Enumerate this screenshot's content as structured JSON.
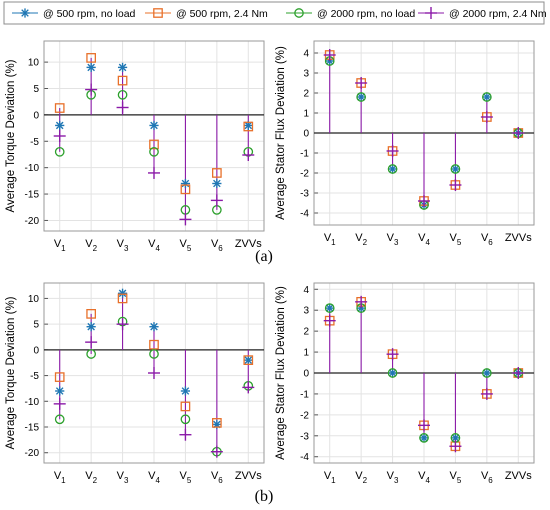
{
  "legend": [
    {
      "label": "@ 500 rpm, no load",
      "marker": "asterisk",
      "color": "#1f77b4"
    },
    {
      "label": "@ 500 rpm, 2.4 Nm",
      "marker": "square",
      "color": "#e8702a"
    },
    {
      "label": "@ 2000 rpm, no load",
      "marker": "circle",
      "color": "#2ca02c"
    },
    {
      "label": "@ 2000 rpm, 2.4 Nm",
      "marker": "plus",
      "color": "#8b1aa8"
    }
  ],
  "stem_color": "#8b1aa8",
  "panel_labels": [
    "(a)",
    "(b)"
  ],
  "chart_data": [
    {
      "id": "a-torque",
      "type": "scatter",
      "categories": [
        "V1",
        "V2",
        "V3",
        "V4",
        "V5",
        "V6",
        "ZVVs"
      ],
      "ylabel": "Average Torque Deviation (%)",
      "ylim": [
        -22,
        14
      ],
      "yticks": [
        10,
        5,
        0,
        -5,
        -10,
        -15,
        -20
      ],
      "grid": true,
      "series": [
        {
          "name": "@ 500 rpm, no load",
          "values": [
            -2,
            9,
            9,
            -2,
            -13,
            -13,
            -2
          ]
        },
        {
          "name": "@ 500 rpm, 2.4 Nm",
          "values": [
            1.3,
            10.8,
            6.5,
            -5.6,
            -14.1,
            -11,
            -2.2
          ]
        },
        {
          "name": "@ 2000 rpm, no load",
          "values": [
            -7,
            3.8,
            3.8,
            -7,
            -18,
            -18,
            -7
          ]
        },
        {
          "name": "@ 2000 rpm, 2.4 Nm",
          "values": [
            -4,
            4.8,
            1.4,
            -11,
            -19.8,
            -16.2,
            -7.6
          ]
        }
      ]
    },
    {
      "id": "a-flux",
      "type": "scatter",
      "categories": [
        "V1",
        "V2",
        "V3",
        "V4",
        "V5",
        "V6",
        "ZVVs"
      ],
      "ylabel": "Average Stator Flux Deviation (%)",
      "ylim": [
        -4.6,
        4.6
      ],
      "yticks": [
        4,
        3,
        2,
        1,
        0,
        -1,
        -2,
        -3,
        -4
      ],
      "grid": true,
      "series": [
        {
          "name": "@ 500 rpm, no load",
          "values": [
            3.6,
            1.8,
            -1.8,
            -3.6,
            -1.8,
            1.8,
            0
          ]
        },
        {
          "name": "@ 500 rpm, 2.4 Nm",
          "values": [
            3.9,
            2.5,
            -0.9,
            -3.4,
            -2.6,
            0.8,
            0
          ]
        },
        {
          "name": "@ 2000 rpm, no load",
          "values": [
            3.6,
            1.8,
            -1.8,
            -3.6,
            -1.8,
            1.8,
            0
          ]
        },
        {
          "name": "@ 2000 rpm, 2.4 Nm",
          "values": [
            3.9,
            2.5,
            -0.9,
            -3.4,
            -2.6,
            0.8,
            0
          ]
        }
      ]
    },
    {
      "id": "b-torque",
      "type": "scatter",
      "categories": [
        "V1",
        "V2",
        "V3",
        "V4",
        "V5",
        "V6",
        "ZVVs"
      ],
      "ylabel": "Average Torque Deviation (%)",
      "ylim": [
        -22,
        13
      ],
      "yticks": [
        10,
        5,
        0,
        -5,
        -10,
        -15,
        -20
      ],
      "grid": true,
      "series": [
        {
          "name": "@ 500 rpm, no load",
          "values": [
            -8,
            4.5,
            11,
            4.5,
            -8,
            -14.5,
            -2
          ]
        },
        {
          "name": "@ 500 rpm, 2.4 Nm",
          "values": [
            -5.3,
            7,
            10,
            1,
            -11,
            -14.2,
            -2
          ]
        },
        {
          "name": "@ 2000 rpm, no load",
          "values": [
            -13.5,
            -0.8,
            5.5,
            -0.8,
            -13.5,
            -19.8,
            -7
          ]
        },
        {
          "name": "@ 2000 rpm, 2.4 Nm",
          "values": [
            -10.5,
            1.5,
            5,
            -4.5,
            -16.5,
            -19.8,
            -7.3
          ]
        }
      ]
    },
    {
      "id": "b-flux",
      "type": "scatter",
      "categories": [
        "V1",
        "V2",
        "V3",
        "V4",
        "V5",
        "V6",
        "ZVVs"
      ],
      "ylabel": "Average Stator Flux Deviation (%)",
      "ylim": [
        -4.3,
        4.3
      ],
      "yticks": [
        4,
        3,
        2,
        1,
        0,
        -1,
        -2,
        -3,
        -4
      ],
      "grid": true,
      "series": [
        {
          "name": "@ 500 rpm, no load",
          "values": [
            3.1,
            3.1,
            0,
            -3.1,
            -3.1,
            0,
            0
          ]
        },
        {
          "name": "@ 500 rpm, 2.4 Nm",
          "values": [
            2.5,
            3.4,
            0.9,
            -2.5,
            -3.5,
            -1,
            0
          ]
        },
        {
          "name": "@ 2000 rpm, no load",
          "values": [
            3.1,
            3.1,
            0,
            -3.1,
            -3.1,
            0,
            0
          ]
        },
        {
          "name": "@ 2000 rpm, 2.4 Nm",
          "values": [
            2.5,
            3.4,
            0.9,
            -2.5,
            -3.5,
            -1,
            0
          ]
        }
      ]
    }
  ]
}
